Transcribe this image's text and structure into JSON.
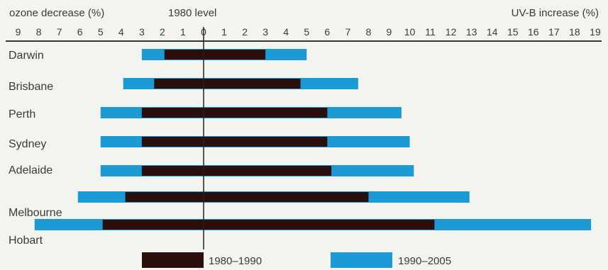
{
  "chart_data": {
    "type": "bar",
    "left_axis_label": "ozone decrease (%)",
    "center_label": "1980 level",
    "right_axis_label": "UV-B increase (%)",
    "left_ticks": [
      9,
      8,
      7,
      6,
      5,
      4,
      3,
      2,
      1
    ],
    "zero_tick": 0,
    "right_ticks": [
      1,
      2,
      3,
      4,
      5,
      6,
      7,
      8,
      9,
      10,
      11,
      12,
      13,
      14,
      15,
      16,
      17,
      18,
      19
    ],
    "xlim_ozone_decrease": [
      9,
      0
    ],
    "xlim_uvb_increase": [
      0,
      19
    ],
    "categories": [
      "Darwin",
      "Brisbane",
      "Perth",
      "Sydney",
      "Adelaide",
      "Melbourne",
      "Hobart"
    ],
    "series": [
      {
        "name": "1980–1990",
        "color": "#2a0f0c",
        "ozone_decrease": [
          1.9,
          2.4,
          3.0,
          3.0,
          3.0,
          3.8,
          4.9
        ],
        "uvb_increase": [
          3.0,
          4.7,
          6.0,
          6.0,
          6.2,
          8.0,
          11.2
        ]
      },
      {
        "name": "1990–2005",
        "color": "#1b9ad6",
        "ozone_decrease": [
          3.0,
          3.9,
          5.0,
          5.0,
          5.0,
          6.1,
          8.2
        ],
        "uvb_increase": [
          5.0,
          7.5,
          9.6,
          10.0,
          10.2,
          12.9,
          18.8
        ]
      }
    ],
    "legend": [
      "1980–1990",
      "1990–2005"
    ],
    "legend_position": "bottom-center",
    "grid": false
  }
}
